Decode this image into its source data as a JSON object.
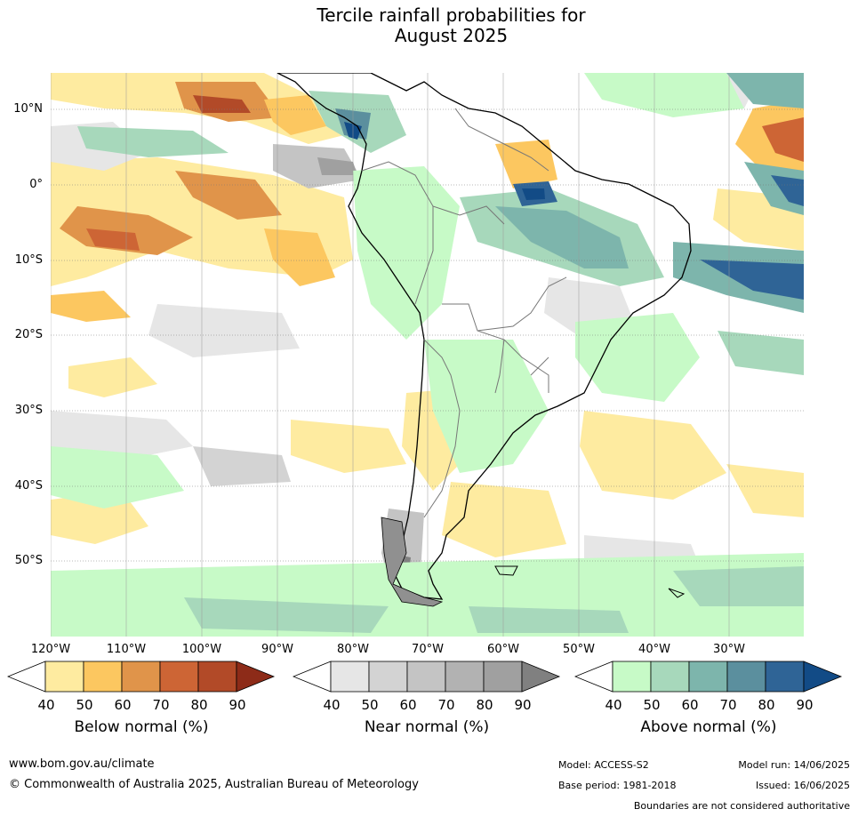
{
  "title": {
    "line1": "Tercile rainfall probabilities for",
    "line2": "August 2025"
  },
  "axes": {
    "lat_labels": [
      "10°N",
      "0°",
      "10°S",
      "20°S",
      "30°S",
      "40°S",
      "50°S"
    ],
    "lon_labels": [
      "120°W",
      "110°W",
      "100°W",
      "90°W",
      "80°W",
      "70°W",
      "60°W",
      "50°W",
      "40°W",
      "30°W"
    ]
  },
  "colorbars": [
    {
      "title": "Below normal (%)",
      "ticks": [
        "40",
        "50",
        "60",
        "70",
        "80",
        "90"
      ],
      "colors": [
        "#ffffff",
        "#feeba0",
        "#fcc760",
        "#e0944a",
        "#cd6535",
        "#b24a28",
        "#8d2b18"
      ]
    },
    {
      "title": "Near normal (%)",
      "ticks": [
        "40",
        "50",
        "60",
        "70",
        "80",
        "90"
      ],
      "colors": [
        "#ffffff",
        "#e6e6e6",
        "#d3d3d3",
        "#c4c4c4",
        "#b2b2b2",
        "#a0a0a0",
        "#808080"
      ]
    },
    {
      "title": "Above normal (%)",
      "ticks": [
        "40",
        "50",
        "60",
        "70",
        "80",
        "90"
      ],
      "colors": [
        "#ffffff",
        "#c7fac7",
        "#a7d8bb",
        "#7db5ac",
        "#5b8f9e",
        "#2f6496",
        "#124b86"
      ]
    }
  ],
  "footer": {
    "url": "www.bom.gov.au/climate",
    "copyright": "© Commonwealth of Australia 2025, Australian Bureau of Meteorology",
    "model": "Model: ACCESS-S2",
    "base_period": "Base period: 1981-2018",
    "model_run": "Model run: 14/06/2025",
    "issued": "Issued: 16/06/2025",
    "disclaimer": "Boundaries are not considered authoritative"
  }
}
